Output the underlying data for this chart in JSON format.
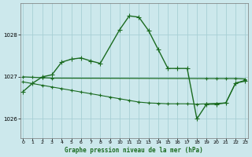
{
  "bg_color": "#cce8ec",
  "grid_color": "#a8d0d5",
  "line_color": "#1a6b20",
  "title": "Graphe pression niveau de la mer (hPa)",
  "xlim": [
    -0.3,
    23.3
  ],
  "ylim": [
    1025.55,
    1028.75
  ],
  "yticks": [
    1026,
    1027,
    1028
  ],
  "xticks": [
    0,
    1,
    2,
    3,
    4,
    5,
    6,
    7,
    8,
    9,
    10,
    11,
    12,
    13,
    14,
    15,
    16,
    17,
    18,
    19,
    20,
    21,
    22,
    23
  ],
  "series": [
    {
      "x": [
        0,
        1,
        2,
        3,
        4,
        5,
        6,
        7,
        8,
        10,
        11,
        12,
        13,
        14,
        15,
        16,
        17,
        18,
        19,
        20,
        21,
        22,
        23
      ],
      "y": [
        1026.65,
        1026.85,
        1027.0,
        1027.05,
        1027.35,
        1027.42,
        1027.45,
        1027.38,
        1027.32,
        1028.12,
        1028.45,
        1028.42,
        1028.1,
        1027.65,
        1027.2,
        1027.2,
        1027.2,
        1026.0,
        1026.35,
        1026.35,
        1026.38,
        1026.85,
        1026.9
      ],
      "marker": "+",
      "markersize": 4,
      "linewidth": 1.0,
      "zorder": 3
    },
    {
      "x": [
        0,
        1,
        2,
        3,
        19,
        20,
        21,
        22,
        23
      ],
      "y": [
        1027.0,
        1026.99,
        1026.98,
        1026.97,
        1026.96,
        1026.96,
        1026.96,
        1026.96,
        1026.95
      ],
      "marker": "+",
      "markersize": 3,
      "linewidth": 0.9,
      "zorder": 2
    },
    {
      "x": [
        0,
        1,
        2,
        3,
        4,
        5,
        6,
        7,
        8,
        9,
        10,
        11,
        12,
        13,
        14,
        15,
        16,
        17,
        18,
        19,
        20,
        21,
        22,
        23
      ],
      "y": [
        1026.88,
        1026.84,
        1026.8,
        1026.76,
        1026.72,
        1026.68,
        1026.64,
        1026.6,
        1026.56,
        1026.52,
        1026.48,
        1026.44,
        1026.4,
        1026.38,
        1026.37,
        1026.36,
        1026.36,
        1026.36,
        1026.35,
        1026.36,
        1026.37,
        1026.38,
        1026.85,
        1026.92
      ],
      "marker": "+",
      "markersize": 3,
      "linewidth": 0.8,
      "zorder": 2
    }
  ]
}
